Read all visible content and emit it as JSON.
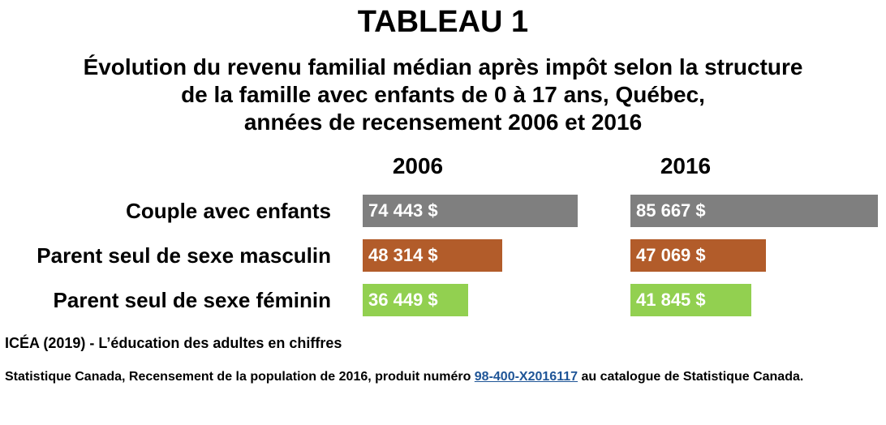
{
  "title": "TABLEAU 1",
  "subtitle_lines": [
    "Évolution du revenu familial médian après impôt selon la structure",
    "de la famille avec enfants de 0 à 17 ans, Québec,",
    "années de recensement 2006 et 2016"
  ],
  "chart_data": {
    "type": "bar",
    "orientation": "horizontal",
    "categories": [
      "Couple avec enfants",
      "Parent seul de sexe masculin",
      "Parent seul de sexe féminin"
    ],
    "series": [
      {
        "name": "2006",
        "values": [
          74443,
          48314,
          36449
        ],
        "value_labels": [
          "74 443 $",
          "48 314 $",
          "36 449 $"
        ]
      },
      {
        "name": "2016",
        "values": [
          85667,
          47069,
          41845
        ],
        "value_labels": [
          "85 667 $",
          "47 069 $",
          "41 845 $"
        ]
      }
    ],
    "category_colors": [
      "#7f7f7f",
      "#b25c2a",
      "#92d050"
    ],
    "grid": false,
    "legend": "none",
    "xlim": [
      0,
      86000
    ]
  },
  "credit": "ICÉA (2019) - L’éducation des adultes en chiffres",
  "source": {
    "before": "Statistique Canada, Recensement de la population de 2016, produit numéro ",
    "link": "98-400-X2016117",
    "after": " au catalogue de Statistique Canada."
  }
}
